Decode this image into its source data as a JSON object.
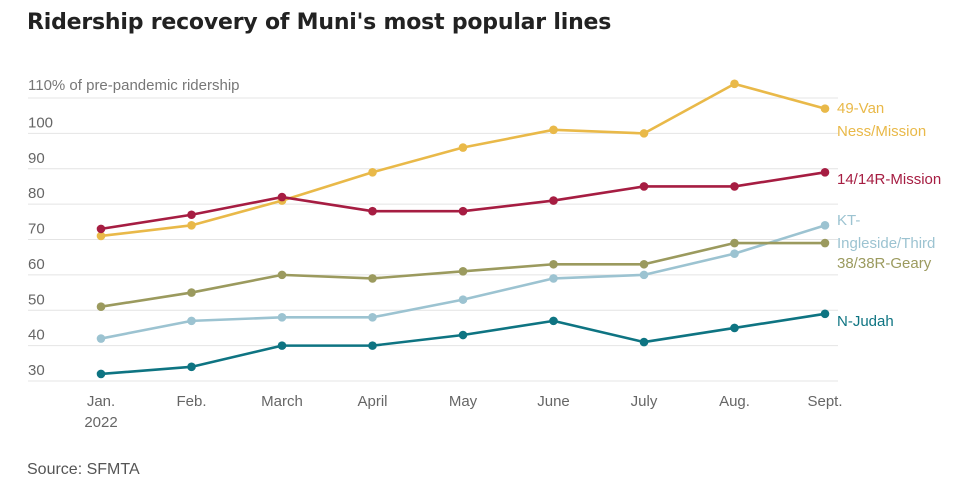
{
  "title": "Ridership recovery of Muni's most popular lines",
  "source": "Source: SFMTA",
  "chart_data": {
    "type": "line",
    "title": "Ridership recovery of Muni's most popular lines",
    "ylabel": "110% of pre-pandemic ridership",
    "xlabel": "",
    "categories": [
      "Jan.",
      "Feb.",
      "March",
      "April",
      "May",
      "June",
      "July",
      "Aug.",
      "Sept."
    ],
    "x_sublabels": [
      "2022",
      "",
      "",
      "",
      "",
      "",
      "",
      "",
      ""
    ],
    "ylim": [
      30,
      110
    ],
    "yticks": [
      30,
      40,
      50,
      60,
      70,
      80,
      90,
      100,
      110
    ],
    "ytick_labels": [
      "30",
      "40",
      "50",
      "60",
      "70",
      "80",
      "90",
      "100",
      ""
    ],
    "grid": true,
    "legend": "direct-labels-right",
    "series": [
      {
        "name": "49-Van Ness/Mission",
        "label_lines": [
          "49-Van",
          "Ness/Mission"
        ],
        "color": "#E9B949",
        "values": [
          71,
          74,
          81,
          89,
          96,
          101,
          100,
          114,
          107
        ]
      },
      {
        "name": "14/14R-Mission",
        "label_lines": [
          "14/14R-Mission"
        ],
        "color": "#A61D42",
        "values": [
          73,
          77,
          82,
          78,
          78,
          81,
          85,
          85,
          89
        ]
      },
      {
        "name": "KT-Ingleside/Third",
        "label_lines": [
          "KT-",
          "Ingleside/Third"
        ],
        "color": "#9CC3D1",
        "values": [
          42,
          47,
          48,
          48,
          53,
          59,
          60,
          66,
          74
        ]
      },
      {
        "name": "38/38R-Geary",
        "label_lines": [
          "38/38R-Geary"
        ],
        "color": "#9B9A5E",
        "values": [
          51,
          55,
          60,
          59,
          61,
          63,
          63,
          69,
          69
        ]
      },
      {
        "name": "N-Judah",
        "label_lines": [
          "N-Judah"
        ],
        "color": "#0E7482",
        "values": [
          32,
          34,
          40,
          40,
          43,
          47,
          41,
          45,
          49
        ]
      }
    ]
  }
}
